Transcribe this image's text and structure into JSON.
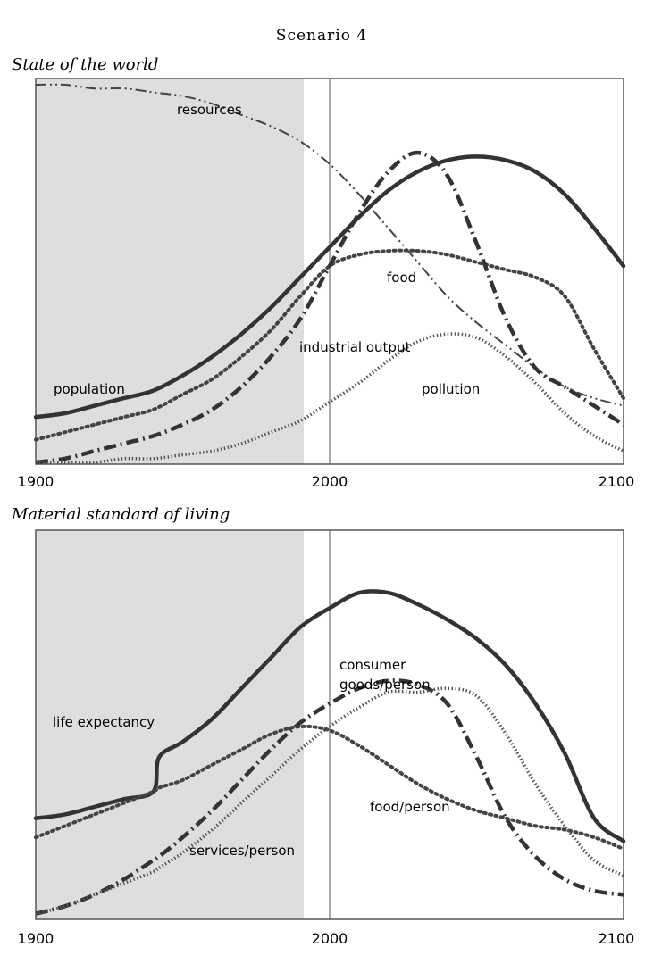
{
  "title": "Scenario 4",
  "chart_data": [
    {
      "type": "line",
      "title": "State of the world",
      "x_ticks": [
        "1900",
        "2000",
        "2100"
      ],
      "xlim": [
        1900,
        2100
      ],
      "ylim": [
        0,
        1
      ],
      "shaded_period": [
        1900,
        1990
      ],
      "reference_line": 2000,
      "x": [
        1900,
        1910,
        1920,
        1930,
        1940,
        1950,
        1960,
        1970,
        1980,
        1990,
        2000,
        2010,
        2020,
        2030,
        2040,
        2050,
        2060,
        2070,
        2080,
        2090,
        2100
      ],
      "series": [
        {
          "name": "resources",
          "style": "dash-dot-dot",
          "values": [
            1.0,
            1.0,
            0.99,
            0.99,
            0.98,
            0.97,
            0.95,
            0.92,
            0.89,
            0.85,
            0.79,
            0.71,
            0.62,
            0.53,
            0.44,
            0.37,
            0.31,
            0.25,
            0.2,
            0.17,
            0.15
          ]
        },
        {
          "name": "population",
          "style": "solid-thick",
          "values": [
            0.12,
            0.13,
            0.15,
            0.17,
            0.19,
            0.23,
            0.28,
            0.34,
            0.41,
            0.49,
            0.57,
            0.65,
            0.72,
            0.77,
            0.8,
            0.81,
            0.8,
            0.77,
            0.71,
            0.62,
            0.52
          ]
        },
        {
          "name": "food",
          "style": "dotted-thick",
          "values": [
            0.06,
            0.08,
            0.1,
            0.12,
            0.14,
            0.18,
            0.22,
            0.28,
            0.35,
            0.44,
            0.52,
            0.55,
            0.56,
            0.56,
            0.55,
            0.53,
            0.51,
            0.49,
            0.44,
            0.3,
            0.17
          ]
        },
        {
          "name": "industrial output",
          "style": "dash-dot-thick",
          "values": [
            0.0,
            0.01,
            0.03,
            0.05,
            0.07,
            0.1,
            0.14,
            0.2,
            0.28,
            0.38,
            0.52,
            0.66,
            0.77,
            0.82,
            0.76,
            0.58,
            0.38,
            0.25,
            0.2,
            0.15,
            0.1
          ]
        },
        {
          "name": "pollution",
          "style": "dotted-fine",
          "values": [
            0.0,
            0.0,
            0.0,
            0.01,
            0.01,
            0.02,
            0.03,
            0.05,
            0.08,
            0.11,
            0.16,
            0.21,
            0.27,
            0.32,
            0.34,
            0.33,
            0.28,
            0.21,
            0.13,
            0.07,
            0.03
          ]
        }
      ],
      "annotations": [
        "resources",
        "food",
        "industrial output",
        "population",
        "pollution"
      ]
    },
    {
      "type": "line",
      "title": "Material standard of living",
      "x_ticks": [
        "1900",
        "2000",
        "2100"
      ],
      "xlim": [
        1900,
        2100
      ],
      "ylim": [
        0,
        1
      ],
      "shaded_period": [
        1900,
        1990
      ],
      "reference_line": 2000,
      "x": [
        1900,
        1910,
        1920,
        1930,
        1940,
        1942,
        1950,
        1960,
        1970,
        1980,
        1990,
        2000,
        2010,
        2020,
        2030,
        2040,
        2050,
        2060,
        2070,
        2080,
        2090,
        2100
      ],
      "series": [
        {
          "name": "life expectancy",
          "style": "solid-thick",
          "values": [
            0.26,
            0.27,
            0.29,
            0.31,
            0.33,
            0.42,
            0.46,
            0.52,
            0.6,
            0.68,
            0.76,
            0.81,
            0.85,
            0.85,
            0.82,
            0.78,
            0.73,
            0.66,
            0.56,
            0.43,
            0.26,
            0.2
          ]
        },
        {
          "name": "food/person",
          "style": "dotted-thick",
          "values": [
            0.21,
            0.24,
            0.27,
            0.3,
            0.33,
            0.34,
            0.36,
            0.4,
            0.44,
            0.48,
            0.5,
            0.49,
            0.45,
            0.4,
            0.35,
            0.31,
            0.28,
            0.26,
            0.24,
            0.23,
            0.21,
            0.18
          ]
        },
        {
          "name": "consumer goods/person",
          "style": "dash-dot-thick",
          "values": [
            0.01,
            0.03,
            0.06,
            0.1,
            0.15,
            0.16,
            0.21,
            0.28,
            0.36,
            0.44,
            0.51,
            0.56,
            0.6,
            0.62,
            0.61,
            0.56,
            0.42,
            0.26,
            0.16,
            0.1,
            0.07,
            0.06
          ]
        },
        {
          "name": "services/person",
          "style": "dotted-fine",
          "values": [
            0.01,
            0.03,
            0.06,
            0.09,
            0.12,
            0.13,
            0.17,
            0.23,
            0.3,
            0.37,
            0.44,
            0.5,
            0.55,
            0.59,
            0.59,
            0.6,
            0.58,
            0.48,
            0.35,
            0.24,
            0.15,
            0.11
          ]
        }
      ],
      "annotations": [
        "life expectancy",
        "consumer goods/person",
        "food/person",
        "services/person"
      ]
    }
  ]
}
